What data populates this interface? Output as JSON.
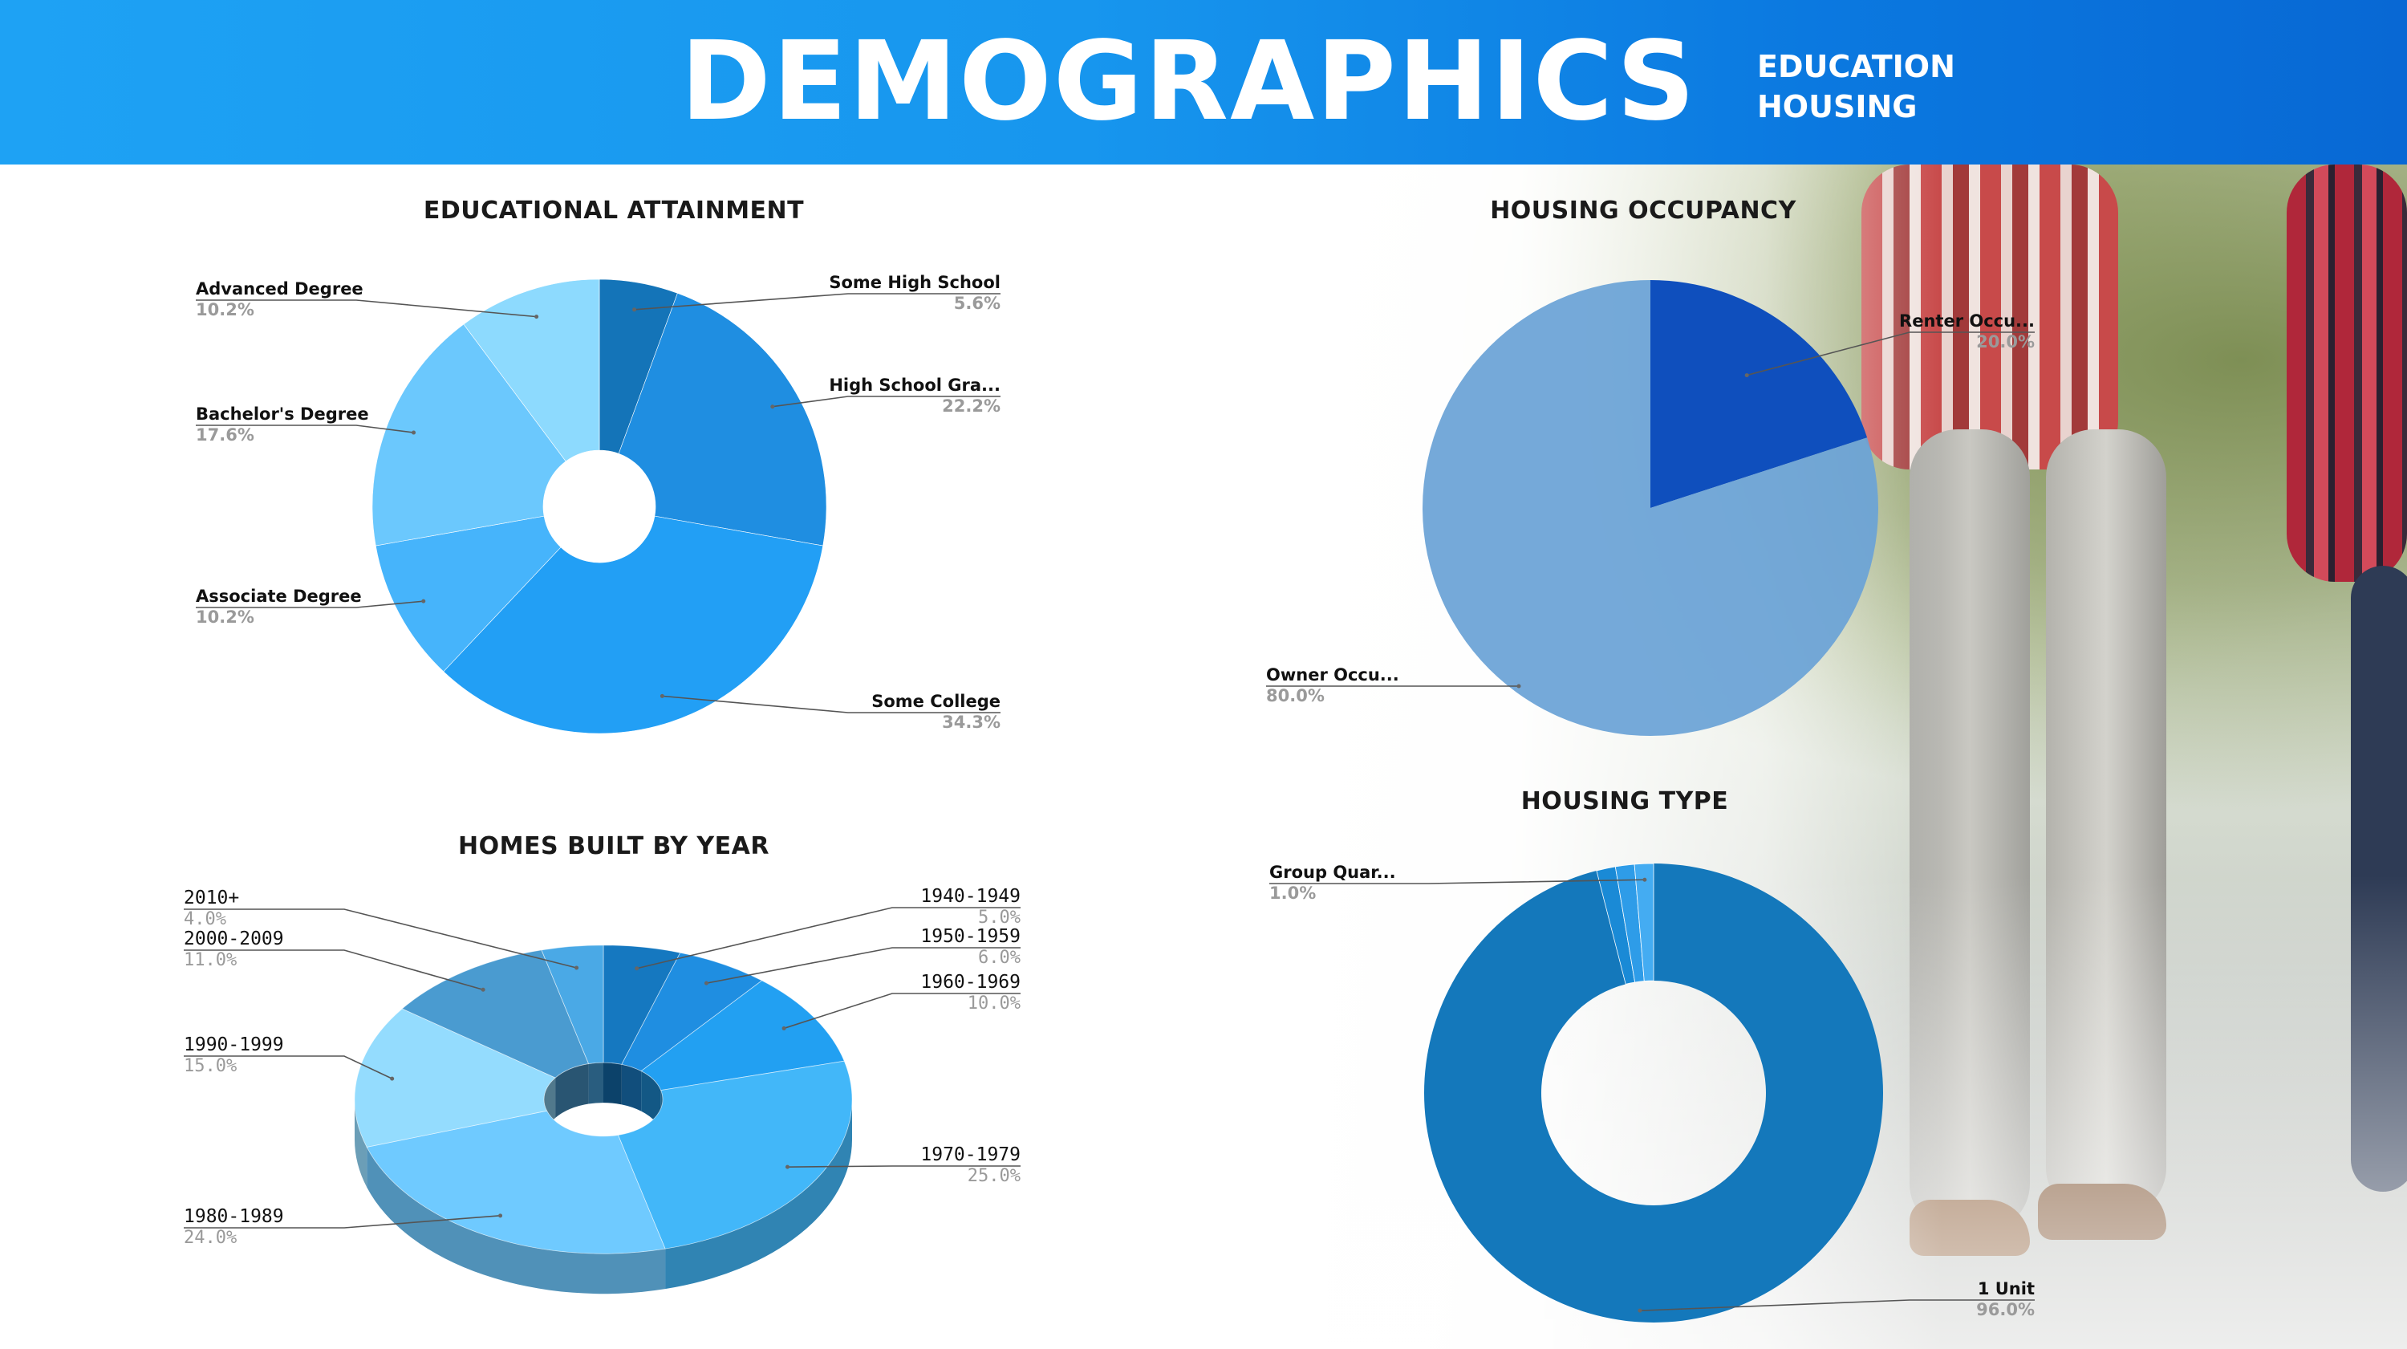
{
  "header": {
    "title": "DEMOGRAPHICS",
    "subtitle_lines": [
      "EDUCATION",
      "HOUSING"
    ],
    "colors": {
      "start": "#1ea2f4",
      "end": "#0868d4"
    }
  },
  "background_image": {
    "description_icon": "walking-people-photo"
  },
  "chart_data": [
    {
      "type": "pie",
      "variant": "donut",
      "title": "EDUCATIONAL ATTAINMENT",
      "categories": [
        "Some High School",
        "High School Gra...",
        "Some College",
        "Associate Degree",
        "Bachelor's Degree",
        "Advanced Degree"
      ],
      "values": [
        5.6,
        22.2,
        34.3,
        10.2,
        17.6,
        10.2
      ],
      "labels": [
        "5.6%",
        "22.2%",
        "34.3%",
        "10.2%",
        "17.6%",
        "10.2%"
      ],
      "colors": [
        "#1474b8",
        "#1f8ee1",
        "#229ff5",
        "#46b4fb",
        "#6bc8fd",
        "#8ddafe"
      ]
    },
    {
      "type": "pie",
      "title": "HOUSING OCCUPANCY",
      "categories": [
        "Renter Occu...",
        "Owner Occu..."
      ],
      "values": [
        20.0,
        80.0
      ],
      "labels": [
        "20.0%",
        "80.0%"
      ],
      "colors": [
        "#0f4fbd",
        "#6aa3d6"
      ]
    },
    {
      "type": "pie",
      "variant": "donut-3d",
      "title": "HOMES BUILT BY YEAR",
      "categories": [
        "1940-1949",
        "1950-1959",
        "1960-1969",
        "1970-1979",
        "1980-1989",
        "1990-1999",
        "2000-2009",
        "2010+"
      ],
      "values": [
        5.0,
        6.0,
        10.0,
        25.0,
        24.0,
        15.0,
        11.0,
        4.0
      ],
      "labels": [
        "5.0%",
        "6.0%",
        "10.0%",
        "25.0%",
        "24.0%",
        "15.0%",
        "11.0%",
        "4.0%"
      ],
      "colors": [
        "#1578c0",
        "#1f8ee1",
        "#22a0f2",
        "#42b7f9",
        "#6fcaff",
        "#94dcfe",
        "#4a9bd0",
        "#4aa9e6"
      ]
    },
    {
      "type": "pie",
      "variant": "donut",
      "title": "HOUSING TYPE",
      "categories": [
        "1 Unit",
        "Group Quar..."
      ],
      "values": [
        96.0,
        1.0
      ],
      "labels": [
        "96.0%",
        "1.0%"
      ],
      "minor_slice_colors": [
        "#1a8ad6",
        "#2e9ce8",
        "#44acf2"
      ],
      "colors": [
        "#1478bb",
        "#44acf2"
      ]
    }
  ]
}
